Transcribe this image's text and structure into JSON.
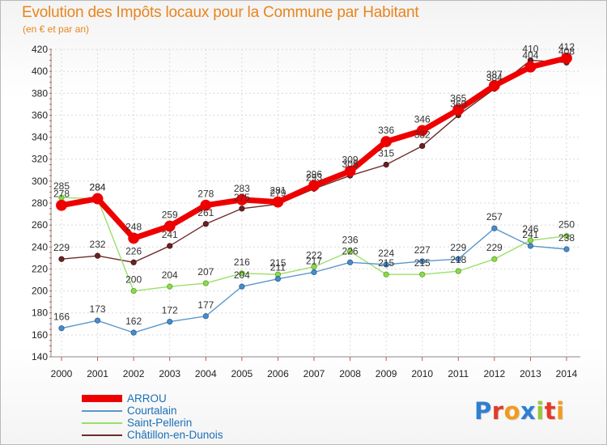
{
  "header": {
    "title": "Evolution des Impôts locaux pour la Commune par Habitant",
    "subtitle": "(en € et par an)"
  },
  "chart_data": {
    "type": "line",
    "title": "Evolution des Impôts locaux pour la Commune par Habitant",
    "subtitle": "(en € et par an)",
    "xlabel": "",
    "ylabel": "",
    "x": [
      "2000",
      "2001",
      "2002",
      "2003",
      "2004",
      "2005",
      "2006",
      "2007",
      "2008",
      "2009",
      "2010",
      "2011",
      "2012",
      "2013",
      "2014"
    ],
    "ylim": [
      140,
      420
    ],
    "yticks": [
      140,
      160,
      180,
      200,
      220,
      240,
      260,
      280,
      300,
      320,
      340,
      360,
      380,
      400,
      420
    ],
    "grid": true,
    "legend_position": "bottom-left",
    "series": [
      {
        "name": "ARROU",
        "color": "#ee0000",
        "values": [
          278,
          284,
          248,
          259,
          278,
          283,
          281,
          296,
          309,
          336,
          346,
          365,
          387,
          404,
          412
        ]
      },
      {
        "name": "Courtalain",
        "color": "#5b97cb",
        "values": [
          166,
          173,
          162,
          172,
          177,
          204,
          211,
          217,
          226,
          224,
          227,
          229,
          257,
          241,
          238
        ]
      },
      {
        "name": "Saint-Pellerin",
        "color": "#99e066",
        "values": [
          285,
          284,
          200,
          204,
          207,
          216,
          215,
          222,
          236,
          215,
          215,
          218,
          229,
          246,
          250
        ]
      },
      {
        "name": "Châtillon-en-Dunois",
        "color": "#6e2b2b",
        "values": [
          229,
          232,
          226,
          241,
          261,
          275,
          279,
          293,
          305,
          315,
          332,
          360,
          384,
          410,
          408
        ]
      }
    ]
  },
  "logo": {
    "letters": [
      "P",
      "r",
      "o",
      "x",
      "i",
      "t",
      "i"
    ],
    "colors": [
      "#2f7fd0",
      "#e23b2a",
      "#f39a1e",
      "#2f7fd0",
      "#9bc73b",
      "#e23b2a",
      "#f39a1e"
    ]
  }
}
